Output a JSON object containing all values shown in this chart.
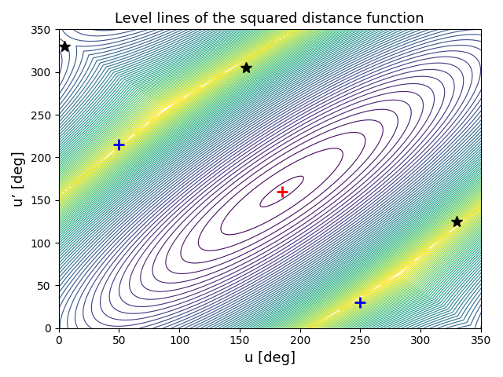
{
  "title": "Level lines of the squared distance function",
  "xlabel": "u [deg]",
  "ylabel": "u’ [deg]",
  "xlim": [
    0,
    350
  ],
  "ylim": [
    0,
    350
  ],
  "xticks": [
    0,
    50,
    100,
    150,
    200,
    250,
    300,
    350
  ],
  "yticks": [
    0,
    50,
    100,
    150,
    200,
    250,
    300,
    350
  ],
  "colormap": "viridis",
  "red_plus": [
    185,
    160
  ],
  "blue_plus_1": [
    50,
    215
  ],
  "blue_plus_2": [
    250,
    30
  ],
  "black_star_1": [
    5,
    330
  ],
  "black_star_2": [
    155,
    305
  ],
  "black_star_3": [
    330,
    125
  ],
  "n_levels": 60,
  "grid_n": 800,
  "s1": 110.0,
  "s2": 30.0,
  "u0": 185,
  "up0": 160
}
